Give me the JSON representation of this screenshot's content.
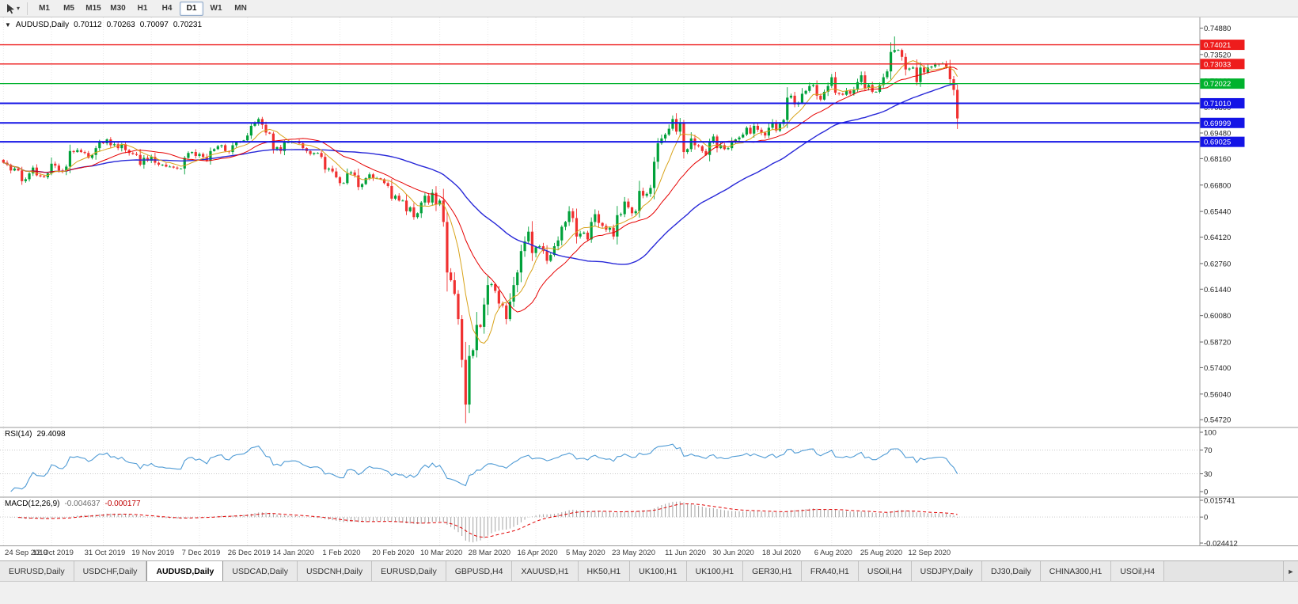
{
  "toolbar": {
    "timeframes": [
      "M1",
      "M5",
      "M15",
      "M30",
      "H1",
      "H4",
      "D1",
      "W1",
      "MN"
    ],
    "active_timeframe": "D1",
    "cursor_caret_icon": "▾"
  },
  "chart_header": {
    "collapse_icon": "▼",
    "symbol": "AUDUSD,Daily",
    "open": "0.70112",
    "high": "0.70263",
    "low": "0.70097",
    "close": "0.70231"
  },
  "rsi_label": {
    "name": "RSI(14)",
    "value": "29.4098"
  },
  "macd_label": {
    "name": "MACD(12,26,9)",
    "value": "-0.004637",
    "signal": "-0.000177"
  },
  "tabs": {
    "active_index": 2,
    "scroll_right_icon": "►",
    "items": [
      "EURUSD,Daily",
      "USDCHF,Daily",
      "AUDUSD,Daily",
      "USDCAD,Daily",
      "USDCNH,Daily",
      "EURUSD,Daily",
      "GBPUSD,H4",
      "XAUUSD,H1",
      "HK50,H1",
      "UK100,H1",
      "UK100,H1",
      "GER30,H1",
      "FRA40,H1",
      "USOil,H4",
      "USDJPY,Daily",
      "DJ30,Daily",
      "CHINA300,H1",
      "USOil,H4"
    ]
  },
  "chart_data": {
    "type": "candlestick",
    "title": "AUDUSD,Daily",
    "ohlc_current": {
      "open": 0.70112,
      "high": 0.70263,
      "low": 0.70097,
      "close": 0.70231
    },
    "y_axis": {
      "max": 0.7543,
      "min": 0.5432,
      "labels": [
        0.7488,
        0.7352,
        0.7216,
        0.708,
        0.6948,
        0.6816,
        0.668,
        0.6544,
        0.6412,
        0.6276,
        0.6144,
        0.6008,
        0.5872,
        0.574,
        0.5604,
        0.5472
      ]
    },
    "x_tick_labels": [
      {
        "label": "24 Sep 2019",
        "index": 0
      },
      {
        "label": "12 Oct 2019",
        "index": 13
      },
      {
        "label": "31 Oct 2019",
        "index": 27
      },
      {
        "label": "19 Nov 2019",
        "index": 40
      },
      {
        "label": "7 Dec 2019",
        "index": 53
      },
      {
        "label": "26 Dec 2019",
        "index": 66
      },
      {
        "label": "14 Jan 2020",
        "index": 78
      },
      {
        "label": "1 Feb 2020",
        "index": 91
      },
      {
        "label": "20 Feb 2020",
        "index": 105
      },
      {
        "label": "10 Mar 2020",
        "index": 118
      },
      {
        "label": "28 Mar 2020",
        "index": 131
      },
      {
        "label": "16 Apr 2020",
        "index": 144
      },
      {
        "label": "5 May 2020",
        "index": 157
      },
      {
        "label": "23 May 2020",
        "index": 170
      },
      {
        "label": "11 Jun 2020",
        "index": 184
      },
      {
        "label": "30 Jun 2020",
        "index": 197
      },
      {
        "label": "18 Jul 2020",
        "index": 210
      },
      {
        "label": "6 Aug 2020",
        "index": 224
      },
      {
        "label": "25 Aug 2020",
        "index": 237
      },
      {
        "label": "12 Sep 2020",
        "index": 250
      }
    ],
    "first_open": 0.681,
    "closes": [
      0.6795,
      0.6785,
      0.6755,
      0.6765,
      0.6755,
      0.67,
      0.671,
      0.674,
      0.677,
      0.673,
      0.6725,
      0.672,
      0.674,
      0.679,
      0.678,
      0.6755,
      0.675,
      0.6775,
      0.6855,
      0.685,
      0.686,
      0.685,
      0.6845,
      0.682,
      0.6835,
      0.687,
      0.69,
      0.6895,
      0.6915,
      0.6885,
      0.689,
      0.687,
      0.689,
      0.686,
      0.6845,
      0.684,
      0.6835,
      0.6785,
      0.682,
      0.6805,
      0.6825,
      0.6795,
      0.6785,
      0.6785,
      0.6775,
      0.6775,
      0.677,
      0.6765,
      0.6765,
      0.682,
      0.6845,
      0.685,
      0.683,
      0.684,
      0.6825,
      0.6805,
      0.6855,
      0.6865,
      0.688,
      0.6885,
      0.6855,
      0.685,
      0.6885,
      0.69,
      0.6905,
      0.691,
      0.6935,
      0.6985,
      0.7,
      0.702,
      0.699,
      0.695,
      0.6945,
      0.6865,
      0.6875,
      0.6855,
      0.69,
      0.69,
      0.6905,
      0.6905,
      0.6895,
      0.687,
      0.6855,
      0.684,
      0.6845,
      0.6845,
      0.6825,
      0.676,
      0.6765,
      0.675,
      0.672,
      0.669,
      0.669,
      0.674,
      0.6745,
      0.673,
      0.667,
      0.6685,
      0.6715,
      0.6735,
      0.6715,
      0.6715,
      0.671,
      0.669,
      0.6675,
      0.661,
      0.6625,
      0.66,
      0.66,
      0.6545,
      0.6565,
      0.6515,
      0.6535,
      0.659,
      0.6625,
      0.659,
      0.664,
      0.658,
      0.66,
      0.649,
      0.623,
      0.619,
      0.612,
      0.599,
      0.578,
      0.555,
      0.58,
      0.583,
      0.596,
      0.595,
      0.6065,
      0.6165,
      0.617,
      0.6135,
      0.607,
      0.606,
      0.599,
      0.608,
      0.6165,
      0.623,
      0.634,
      0.639,
      0.644,
      0.633,
      0.636,
      0.6365,
      0.634,
      0.629,
      0.632,
      0.6365,
      0.6395,
      0.6465,
      0.649,
      0.6545,
      0.651,
      0.6415,
      0.643,
      0.6435,
      0.64,
      0.649,
      0.653,
      0.6485,
      0.647,
      0.645,
      0.646,
      0.6415,
      0.6525,
      0.653,
      0.6595,
      0.6565,
      0.6535,
      0.6545,
      0.665,
      0.6625,
      0.6635,
      0.6665,
      0.68,
      0.6895,
      0.692,
      0.694,
      0.697,
      0.702,
      0.6955,
      0.7,
      0.685,
      0.6865,
      0.692,
      0.6885,
      0.688,
      0.6855,
      0.6835,
      0.6905,
      0.693,
      0.687,
      0.6885,
      0.6865,
      0.687,
      0.6905,
      0.6915,
      0.6925,
      0.694,
      0.6975,
      0.6945,
      0.6985,
      0.6965,
      0.695,
      0.6935,
      0.6975,
      0.7,
      0.696,
      0.6995,
      0.7015,
      0.713,
      0.714,
      0.7095,
      0.7105,
      0.715,
      0.7165,
      0.719,
      0.7195,
      0.714,
      0.712,
      0.716,
      0.719,
      0.7235,
      0.7155,
      0.715,
      0.7145,
      0.7165,
      0.715,
      0.717,
      0.721,
      0.7245,
      0.718,
      0.7195,
      0.716,
      0.716,
      0.7195,
      0.7235,
      0.7265,
      0.7365,
      0.7375,
      0.7375,
      0.734,
      0.7275,
      0.728,
      0.7285,
      0.721,
      0.7285,
      0.726,
      0.7285,
      0.729,
      0.73,
      0.7305,
      0.7305,
      0.729,
      0.7225,
      0.717,
      0.7023
    ],
    "spikes": [
      {
        "index": 125,
        "low": 0.5472
      },
      {
        "index": 240,
        "high": 0.7415
      },
      {
        "index": 241,
        "high": 0.7445
      }
    ],
    "hlines": [
      {
        "value": 0.74021,
        "color": "#ee1c1c",
        "width": 1.3
      },
      {
        "value": 0.73033,
        "color": "#ee1c1c",
        "width": 1.3
      },
      {
        "value": 0.72022,
        "color": "#00b22d",
        "width": 1.3
      },
      {
        "value": 0.7101,
        "color": "#1414e6",
        "width": 2
      },
      {
        "value": 0.69999,
        "color": "#1414e6",
        "width": 2
      },
      {
        "value": 0.69025,
        "color": "#1414e6",
        "width": 2
      }
    ],
    "moving_averages": [
      {
        "period": 50,
        "color": "#2828d8",
        "width": 1.4
      },
      {
        "period": 20,
        "color": "#e60000",
        "width": 1
      },
      {
        "period": 8,
        "color": "#d8a31a",
        "width": 1
      }
    ],
    "rsi": {
      "name": "RSI(14)",
      "current": 29.4098,
      "scale": [
        100,
        70,
        30,
        0
      ],
      "levels": [
        70,
        30
      ],
      "color": "#4f9bd5"
    },
    "macd": {
      "name": "MACD(12,26,9)",
      "current": -0.004637,
      "signal_current": -0.000177,
      "scale_max": 0.015741,
      "scale_min": -0.024412,
      "hist_color": "#a2a2a2",
      "signal_color": "#e00000"
    },
    "colors": {
      "bull": "#00a13a",
      "bear": "#f03030",
      "background": "#ffffff",
      "grid": "#e8e8e8",
      "axis_text": "#1c1c1c"
    }
  }
}
